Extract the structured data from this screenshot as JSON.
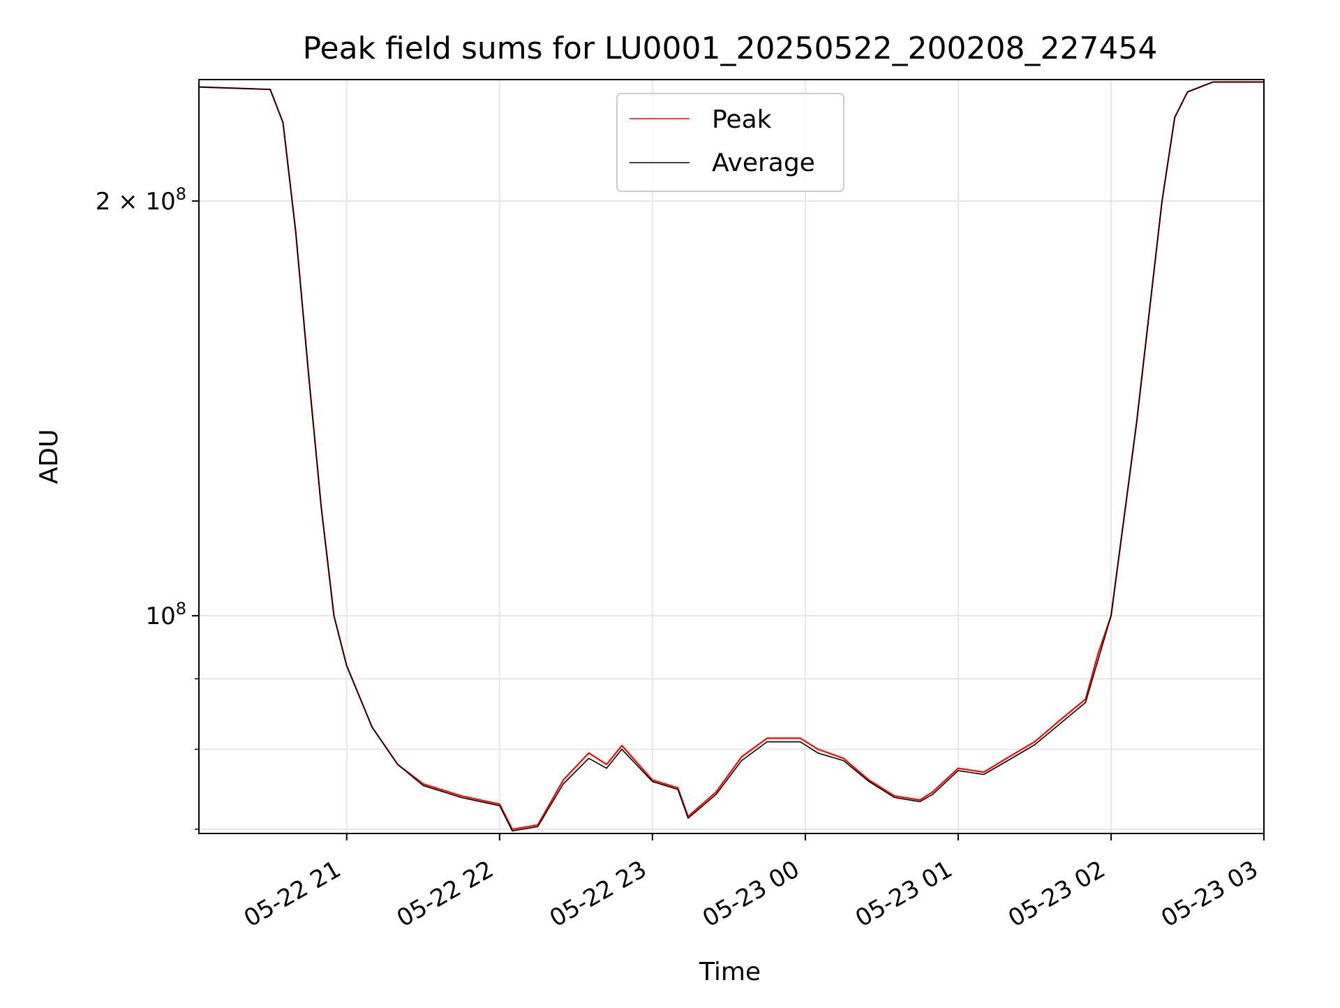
{
  "chart_data": {
    "type": "line",
    "title": "Peak field sums for LU0001_20250522_200208_227454",
    "xlabel": "Time",
    "ylabel": "ADU",
    "x_scale": "time",
    "y_scale": "log",
    "xlim": [
      "2025-05-22 20:02",
      "2025-05-23 03:00"
    ],
    "ylim": [
      69500000,
      245000000
    ],
    "x_ticks": [
      "05-22 21",
      "05-22 22",
      "05-22 23",
      "05-23 00",
      "05-23 01",
      "05-23 02",
      "05-23 03"
    ],
    "y_ticks": [
      {
        "value": 100000000,
        "label": "10^8",
        "base": "10",
        "exp": "8"
      },
      {
        "value": 200000000,
        "label": "2×10^8",
        "base": "2 × 10",
        "exp": "8"
      }
    ],
    "y_minor_ticks": [
      70000000,
      80000000,
      90000000
    ],
    "grid": true,
    "legend_position": "upper center",
    "series": [
      {
        "name": "Peak",
        "color": "#ff0000",
        "x": [
          "2025-05-22 20:02",
          "2025-05-22 20:30",
          "2025-05-22 20:35",
          "2025-05-22 20:40",
          "2025-05-22 20:45",
          "2025-05-22 20:50",
          "2025-05-22 20:55",
          "2025-05-22 21:00",
          "2025-05-22 21:10",
          "2025-05-22 21:20",
          "2025-05-22 21:30",
          "2025-05-22 21:45",
          "2025-05-22 22:00",
          "2025-05-22 22:05",
          "2025-05-22 22:15",
          "2025-05-22 22:25",
          "2025-05-22 22:35",
          "2025-05-22 22:42",
          "2025-05-22 22:48",
          "2025-05-22 23:00",
          "2025-05-22 23:10",
          "2025-05-22 23:14",
          "2025-05-22 23:25",
          "2025-05-22 23:35",
          "2025-05-22 23:45",
          "2025-05-22 23:58",
          "2025-05-23 00:05",
          "2025-05-23 00:15",
          "2025-05-23 00:25",
          "2025-05-23 00:35",
          "2025-05-23 00:45",
          "2025-05-23 00:50",
          "2025-05-23 01:00",
          "2025-05-23 01:10",
          "2025-05-23 01:20",
          "2025-05-23 01:30",
          "2025-05-23 01:40",
          "2025-05-23 01:50",
          "2025-05-23 01:55",
          "2025-05-23 02:00",
          "2025-05-23 02:10",
          "2025-05-23 02:20",
          "2025-05-23 02:25",
          "2025-05-23 02:30",
          "2025-05-23 02:40",
          "2025-05-23 03:00"
        ],
        "y": [
          242000000,
          241000000,
          228000000,
          190000000,
          150000000,
          120000000,
          100000000,
          92000000,
          83000000,
          78000000,
          75500000,
          74000000,
          73000000,
          70000000,
          70500000,
          76000000,
          79500000,
          78000000,
          80500000,
          76000000,
          75000000,
          71500000,
          74500000,
          79000000,
          81500000,
          81500000,
          80000000,
          78800000,
          76000000,
          74000000,
          73500000,
          74500000,
          77500000,
          77000000,
          79000000,
          81000000,
          84000000,
          87000000,
          94000000,
          100000000,
          138000000,
          200000000,
          230000000,
          240000000,
          244000000,
          244000000
        ]
      },
      {
        "name": "Average",
        "color": "#000000",
        "x": [
          "2025-05-22 20:02",
          "2025-05-22 20:30",
          "2025-05-22 20:35",
          "2025-05-22 20:40",
          "2025-05-22 20:45",
          "2025-05-22 20:50",
          "2025-05-22 20:55",
          "2025-05-22 21:00",
          "2025-05-22 21:10",
          "2025-05-22 21:20",
          "2025-05-22 21:30",
          "2025-05-22 21:45",
          "2025-05-22 22:00",
          "2025-05-22 22:05",
          "2025-05-22 22:15",
          "2025-05-22 22:25",
          "2025-05-22 22:35",
          "2025-05-22 22:42",
          "2025-05-22 22:48",
          "2025-05-22 23:00",
          "2025-05-22 23:10",
          "2025-05-22 23:14",
          "2025-05-22 23:25",
          "2025-05-22 23:35",
          "2025-05-22 23:45",
          "2025-05-22 23:58",
          "2025-05-23 00:05",
          "2025-05-23 00:15",
          "2025-05-23 00:25",
          "2025-05-23 00:35",
          "2025-05-23 00:45",
          "2025-05-23 00:50",
          "2025-05-23 01:00",
          "2025-05-23 01:10",
          "2025-05-23 01:20",
          "2025-05-23 01:30",
          "2025-05-23 01:40",
          "2025-05-23 01:50",
          "2025-05-23 01:55",
          "2025-05-23 02:00",
          "2025-05-23 02:10",
          "2025-05-23 02:20",
          "2025-05-23 02:25",
          "2025-05-23 02:30",
          "2025-05-23 02:40",
          "2025-05-23 03:00"
        ],
        "y": [
          242000000,
          241000000,
          228000000,
          190000000,
          150000000,
          120000000,
          100000000,
          92000000,
          83000000,
          78000000,
          75300000,
          73800000,
          72800000,
          69800000,
          70300000,
          75500000,
          78800000,
          77500000,
          80000000,
          75800000,
          74800000,
          71300000,
          74200000,
          78500000,
          81000000,
          81000000,
          79500000,
          78500000,
          75800000,
          73800000,
          73300000,
          74200000,
          77200000,
          76700000,
          78600000,
          80600000,
          83500000,
          86500000,
          93000000,
          100000000,
          138000000,
          200000000,
          230000000,
          240000000,
          244000000,
          244000000
        ]
      }
    ]
  }
}
